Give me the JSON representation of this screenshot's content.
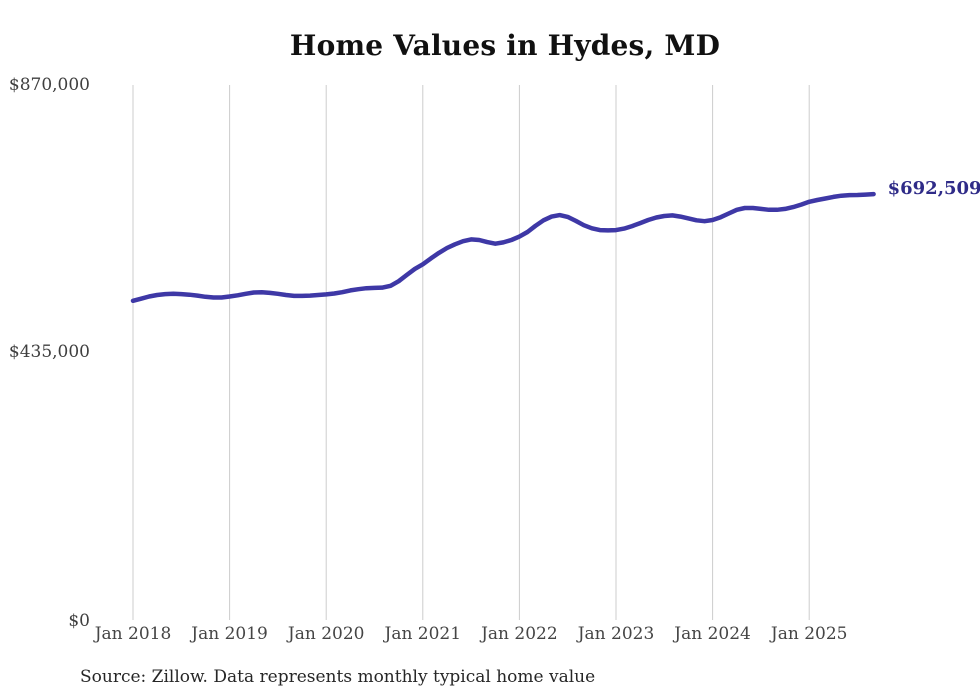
{
  "chart_data": {
    "type": "line",
    "title": "Home Values in Hydes, MD",
    "source_note": "Source: Zillow. Data represents monthly typical home value",
    "end_label": "$692,509",
    "latest_value": 692509,
    "ylim": [
      0,
      870000
    ],
    "y_ticks": [
      870000,
      435000,
      0
    ],
    "y_tick_labels": [
      "$870,000",
      "$435,000",
      "$0"
    ],
    "x_tick_labels": [
      "Jan 2018",
      "Jan 2019",
      "Jan 2020",
      "Jan 2021",
      "Jan 2022",
      "Jan 2023",
      "Jan 2024",
      "Jan 2025"
    ],
    "grid": "vertical-gridlines-at-january",
    "legend": "none",
    "colors": {
      "line": "#3e38a6",
      "end_label": "#2f2b88",
      "grid": "#cccccc",
      "tick_text": "#454545",
      "title_text": "#111111",
      "source_text": "#262626"
    },
    "series": [
      {
        "name": "Monthly typical home value",
        "frequency": "monthly",
        "x": [
          "2018-01",
          "2018-02",
          "2018-03",
          "2018-04",
          "2018-05",
          "2018-06",
          "2018-07",
          "2018-08",
          "2018-09",
          "2018-10",
          "2018-11",
          "2018-12",
          "2019-01",
          "2019-02",
          "2019-03",
          "2019-04",
          "2019-05",
          "2019-06",
          "2019-07",
          "2019-08",
          "2019-09",
          "2019-10",
          "2019-11",
          "2019-12",
          "2020-01",
          "2020-02",
          "2020-03",
          "2020-04",
          "2020-05",
          "2020-06",
          "2020-07",
          "2020-08",
          "2020-09",
          "2020-10",
          "2020-11",
          "2020-12",
          "2021-01",
          "2021-02",
          "2021-03",
          "2021-04",
          "2021-05",
          "2021-06",
          "2021-07",
          "2021-08",
          "2021-09",
          "2021-10",
          "2021-11",
          "2021-12",
          "2022-01",
          "2022-02",
          "2022-03",
          "2022-04",
          "2022-05",
          "2022-06",
          "2022-07",
          "2022-08",
          "2022-09",
          "2022-10",
          "2022-11",
          "2022-12",
          "2023-01",
          "2023-02",
          "2023-03",
          "2023-04",
          "2023-05",
          "2023-06",
          "2023-07",
          "2023-08",
          "2023-09",
          "2023-10",
          "2023-11",
          "2023-12",
          "2024-01",
          "2024-02",
          "2024-03",
          "2024-04",
          "2024-05",
          "2024-06",
          "2024-07",
          "2024-08",
          "2024-09",
          "2024-10",
          "2024-11",
          "2024-12",
          "2025-01",
          "2025-02",
          "2025-03",
          "2025-04",
          "2025-05",
          "2025-06",
          "2025-07",
          "2025-08",
          "2025-09"
        ],
        "values": [
          519000,
          522500,
          526000,
          528500,
          530000,
          530500,
          530000,
          529000,
          527500,
          525500,
          524500,
          524500,
          526000,
          528000,
          530500,
          532500,
          533000,
          532000,
          530500,
          528500,
          527000,
          527000,
          527500,
          528500,
          529500,
          531000,
          533000,
          536000,
          538000,
          539500,
          540000,
          540500,
          543500,
          551000,
          561000,
          571000,
          578500,
          588000,
          597000,
          605000,
          611000,
          616000,
          619000,
          618000,
          614500,
          612000,
          614000,
          618000,
          623500,
          631000,
          641000,
          650000,
          656000,
          658500,
          655500,
          649000,
          642000,
          637000,
          634000,
          633500,
          634000,
          636500,
          640500,
          645500,
          650500,
          654500,
          657000,
          658000,
          656000,
          653000,
          650000,
          648500,
          650500,
          655000,
          661000,
          667000,
          670000,
          670000,
          668500,
          667000,
          667000,
          668500,
          671500,
          675500,
          680000,
          683000,
          685500,
          688000,
          690000,
          691000,
          691200,
          691800,
          692509
        ]
      }
    ]
  }
}
